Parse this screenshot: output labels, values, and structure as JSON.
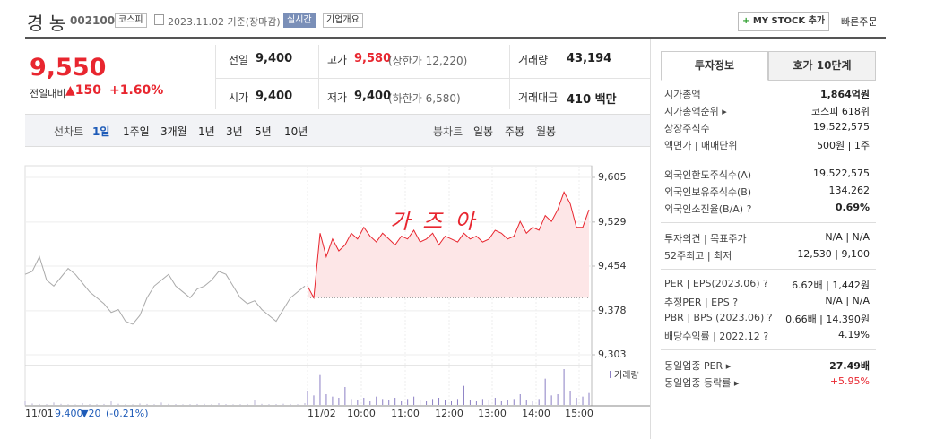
{
  "header": {
    "name": "경 농",
    "code": "002100",
    "market": "코스피",
    "date": "2023.11.02 기준(장마감)",
    "realtime": "실시간",
    "company_info": "기업개요",
    "my_stock": "MY STOCK 추가",
    "quick_order": "빠른주문"
  },
  "quote": {
    "price": "9,550",
    "change_label": "전일대비",
    "change": "150",
    "change_pct": "+1.60%"
  },
  "stats": [
    [
      {
        "label": "전일",
        "value": "9,400"
      },
      {
        "label": "고가",
        "value": "9,580",
        "note": "(상한가 12,220)"
      },
      {
        "label": "거래량",
        "value": "43,194"
      }
    ],
    [
      {
        "label": "시가",
        "value": "9,400"
      },
      {
        "label": "저가",
        "value": "9,400",
        "note": "(하한가 6,580)"
      },
      {
        "label": "거래대금",
        "value": "410 백만"
      }
    ]
  ],
  "tabs": {
    "line_label": "선차트",
    "line": [
      "1일",
      "1주일",
      "3개월",
      "1년",
      "3년",
      "5년",
      "10년"
    ],
    "candle_label": "봉차트",
    "candle": [
      "일봉",
      "주봉",
      "월봉"
    ]
  },
  "chart_data": {
    "type": "line",
    "annotation": "가즈아",
    "volume_label": "거래량",
    "ylim": [
      9303,
      9605
    ],
    "yticks": [
      {
        "value": 9605,
        "label": "9,605"
      },
      {
        "value": 9529,
        "label": "9,529"
      },
      {
        "value": 9454,
        "label": "9,454"
      },
      {
        "value": 9378,
        "label": "9,378"
      },
      {
        "value": 9303,
        "label": "9,303"
      }
    ],
    "base": 9400,
    "x_labels": [
      "11/01",
      "11/02",
      "10:00",
      "11:00",
      "12:00",
      "13:00",
      "14:00",
      "15:00"
    ],
    "prev_summary": {
      "price": "9,400",
      "change": "▼20",
      "pct": "(-0.21%)"
    },
    "series": [
      {
        "name": "11/01",
        "color": "#aaaaaa",
        "values": [
          9440,
          9445,
          9470,
          9430,
          9420,
          9435,
          9450,
          9440,
          9425,
          9410,
          9400,
          9390,
          9375,
          9380,
          9360,
          9355,
          9370,
          9400,
          9420,
          9430,
          9440,
          9420,
          9410,
          9400,
          9415,
          9420,
          9430,
          9445,
          9440,
          9420,
          9400,
          9390,
          9395,
          9380,
          9370,
          9360,
          9380,
          9400,
          9410,
          9420
        ],
        "volumes": [
          300,
          120,
          80,
          60,
          200,
          90,
          50,
          40,
          150,
          70,
          60,
          80,
          300,
          100,
          60,
          50,
          120,
          80,
          60,
          200,
          90,
          70,
          50,
          60,
          80,
          90,
          60,
          150,
          70,
          50,
          60,
          80,
          400,
          90,
          60,
          70,
          100,
          80,
          60,
          150
        ]
      },
      {
        "name": "11/02",
        "color": "#e8262f",
        "values": [
          9420,
          9400,
          9510,
          9470,
          9500,
          9480,
          9490,
          9510,
          9500,
          9520,
          9505,
          9495,
          9510,
          9500,
          9490,
          9505,
          9500,
          9515,
          9495,
          9500,
          9510,
          9490,
          9505,
          9500,
          9495,
          9510,
          9500,
          9505,
          9495,
          9500,
          9515,
          9510,
          9500,
          9505,
          9530,
          9510,
          9520,
          9515,
          9540,
          9530,
          9550,
          9580,
          9560,
          9520,
          9520,
          9550
        ],
        "volumes": [
          1200,
          800,
          2500,
          900,
          700,
          600,
          1500,
          500,
          400,
          600,
          300,
          700,
          500,
          400,
          600,
          300,
          500,
          700,
          400,
          300,
          500,
          600,
          400,
          300,
          500,
          1600,
          400,
          300,
          500,
          400,
          600,
          300,
          400,
          500,
          900,
          400,
          300,
          500,
          2200,
          800,
          900,
          3000,
          1200,
          600,
          700,
          1000
        ]
      }
    ]
  },
  "side": {
    "tabs": [
      "투자정보",
      "호가 10단계"
    ],
    "sections": [
      [
        {
          "label": "시가총액",
          "value": "1,864억원"
        },
        {
          "label": "시가총액순위 ▸",
          "value": "코스피 618위"
        },
        {
          "label": "상장주식수",
          "value": "19,522,575"
        },
        {
          "label": "액면가 | 매매단위",
          "value": "500원 | 1주"
        }
      ],
      [
        {
          "label": "외국인한도주식수(A)",
          "value": "19,522,575"
        },
        {
          "label": "외국인보유주식수(B)",
          "value": "134,262"
        },
        {
          "label": "외국인소진율(B/A) ?",
          "value": "0.69%"
        }
      ],
      [
        {
          "label": "투자의견 | 목표주가",
          "value": "N/A | N/A"
        },
        {
          "label": "52주최고 | 최저",
          "value": "12,530 | 9,100"
        }
      ],
      [
        {
          "label": "PER | EPS(2023.06) ?",
          "value": "6.62배 | 1,442원"
        },
        {
          "label": "추정PER | EPS ?",
          "value": "N/A | N/A"
        },
        {
          "label": "PBR | BPS (2023.06) ?",
          "value": "0.66배 | 14,390원"
        },
        {
          "label": "배당수익률 | 2022.12 ?",
          "value": "4.19%"
        }
      ],
      [
        {
          "label": "동일업종 PER ▸",
          "value": "27.49배"
        },
        {
          "label": "동일업종 등락률 ▸",
          "value": "+5.95%"
        }
      ]
    ]
  }
}
